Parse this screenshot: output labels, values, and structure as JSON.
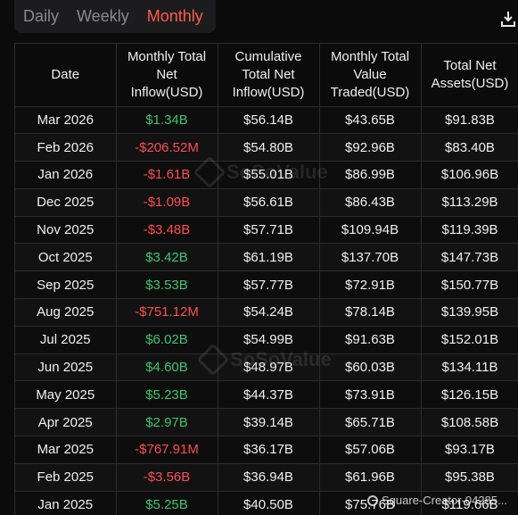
{
  "tabs": [
    {
      "label": "Daily",
      "active": false
    },
    {
      "label": "Weekly",
      "active": false
    },
    {
      "label": "Monthly",
      "active": true
    }
  ],
  "columns": [
    "Date",
    "Monthly Total Net Inflow(USD)",
    "Cumulative Total Net Inflow(USD)",
    "Monthly Total Value Traded(USD)",
    "Total Net Assets(USD)"
  ],
  "rows": [
    {
      "date": "Mar 2026",
      "inflow": "$1.34B",
      "inflow_sign": "pos",
      "cumulative": "$56.14B",
      "traded": "$43.65B",
      "assets": "$91.83B"
    },
    {
      "date": "Feb 2026",
      "inflow": "-$206.52M",
      "inflow_sign": "neg",
      "cumulative": "$54.80B",
      "traded": "$92.96B",
      "assets": "$83.40B"
    },
    {
      "date": "Jan 2026",
      "inflow": "-$1.61B",
      "inflow_sign": "neg",
      "cumulative": "$55.01B",
      "traded": "$86.99B",
      "assets": "$106.96B"
    },
    {
      "date": "Dec 2025",
      "inflow": "-$1.09B",
      "inflow_sign": "neg",
      "cumulative": "$56.61B",
      "traded": "$86.43B",
      "assets": "$113.29B"
    },
    {
      "date": "Nov 2025",
      "inflow": "-$3.48B",
      "inflow_sign": "neg",
      "cumulative": "$57.71B",
      "traded": "$109.94B",
      "assets": "$119.39B"
    },
    {
      "date": "Oct 2025",
      "inflow": "$3.42B",
      "inflow_sign": "pos",
      "cumulative": "$61.19B",
      "traded": "$137.70B",
      "assets": "$147.73B"
    },
    {
      "date": "Sep 2025",
      "inflow": "$3.53B",
      "inflow_sign": "pos",
      "cumulative": "$57.77B",
      "traded": "$72.91B",
      "assets": "$150.77B"
    },
    {
      "date": "Aug 2025",
      "inflow": "-$751.12M",
      "inflow_sign": "neg",
      "cumulative": "$54.24B",
      "traded": "$78.14B",
      "assets": "$139.95B"
    },
    {
      "date": "Jul 2025",
      "inflow": "$6.02B",
      "inflow_sign": "pos",
      "cumulative": "$54.99B",
      "traded": "$91.63B",
      "assets": "$152.01B"
    },
    {
      "date": "Jun 2025",
      "inflow": "$4.60B",
      "inflow_sign": "pos",
      "cumulative": "$48.97B",
      "traded": "$60.03B",
      "assets": "$134.11B"
    },
    {
      "date": "May 2025",
      "inflow": "$5.23B",
      "inflow_sign": "pos",
      "cumulative": "$44.37B",
      "traded": "$73.91B",
      "assets": "$126.15B"
    },
    {
      "date": "Apr 2025",
      "inflow": "$2.97B",
      "inflow_sign": "pos",
      "cumulative": "$39.14B",
      "traded": "$65.71B",
      "assets": "$108.58B"
    },
    {
      "date": "Mar 2025",
      "inflow": "-$767.91M",
      "inflow_sign": "neg",
      "cumulative": "$36.17B",
      "traded": "$57.06B",
      "assets": "$93.17B"
    },
    {
      "date": "Feb 2025",
      "inflow": "-$3.56B",
      "inflow_sign": "neg",
      "cumulative": "$36.94B",
      "traded": "$61.96B",
      "assets": "$95.38B"
    },
    {
      "date": "Jan 2025",
      "inflow": "$5.25B",
      "inflow_sign": "pos",
      "cumulative": "$40.50B",
      "traded": "$75.76B",
      "assets": "$119.66B"
    }
  ],
  "watermark": "SoSoValue",
  "creator_tag": "Square-Creator-04285...",
  "colors": {
    "positive": "#3ec46d",
    "negative": "#ff4d4d",
    "active_tab": "#ff5b4a"
  },
  "icons": {
    "download": "download-icon",
    "watermark": "sosovalue-logo-icon"
  }
}
